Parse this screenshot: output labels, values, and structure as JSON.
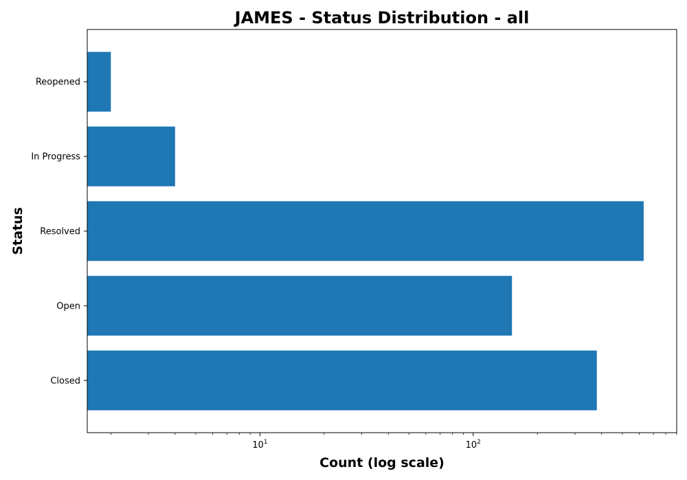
{
  "chart_data": {
    "type": "bar",
    "orientation": "horizontal",
    "title": "JAMES - Status Distribution - all",
    "xlabel": "Count (log scale)",
    "ylabel": "Status",
    "xscale": "log",
    "xlim": [
      1.55,
      900
    ],
    "categories": [
      "Closed",
      "Open",
      "Resolved",
      "In Progress",
      "Reopened"
    ],
    "values": [
      380,
      152,
      630,
      4,
      2
    ],
    "bar_color": "#1f77b4",
    "x_major_ticks": [
      {
        "base": "10",
        "exp": "1",
        "value": 10
      },
      {
        "base": "10",
        "exp": "2",
        "value": 100
      }
    ],
    "grid": false
  }
}
